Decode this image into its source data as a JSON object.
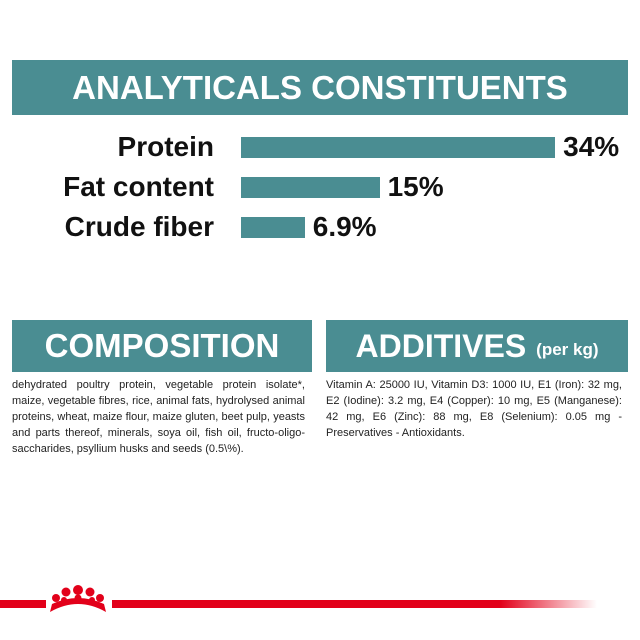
{
  "header": {
    "title": "ANALYTICALS CONSTITUENTS"
  },
  "chart_data": {
    "type": "bar",
    "orientation": "horizontal",
    "color": "#4a8d92",
    "categories": [
      "Protein",
      "Fat content",
      "Crude fiber"
    ],
    "values": [
      34,
      15,
      6.9
    ],
    "value_labels": [
      "34%",
      "15%",
      "6.9%"
    ]
  },
  "composition": {
    "title": "COMPOSITION",
    "text": "dehydrated poultry protein, vegetable protein isolate*, maize, vegetable fibres, rice, animal fats, hydrolysed animal proteins, wheat, maize flour, maize gluten, beet pulp, yeasts and parts thereof, minerals, soya oil, fish oil, fructo-oligo-saccharides, psyllium husks and seeds (0.5\\%)."
  },
  "additives": {
    "title": "ADDITIVES",
    "subtitle": "(per kg)",
    "text": "Vitamin A: 25000 IU, Vitamin D3: 1000 IU, E1 (Iron): 32 mg, E2 (Iodine): 3.2 mg, E4 (Copper): 10 mg, E5 (Manganese): 42 mg, E6 (Zinc): 88 mg, E8 (Selenium): 0.05 mg - Preservatives - Antioxidants."
  }
}
